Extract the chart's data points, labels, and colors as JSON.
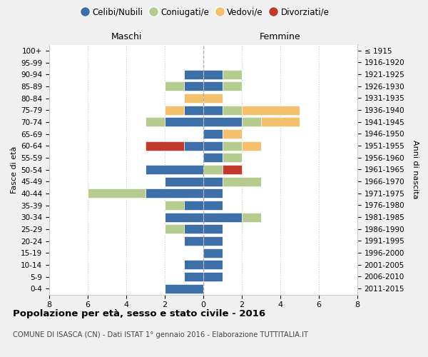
{
  "age_groups": [
    "0-4",
    "5-9",
    "10-14",
    "15-19",
    "20-24",
    "25-29",
    "30-34",
    "35-39",
    "40-44",
    "45-49",
    "50-54",
    "55-59",
    "60-64",
    "65-69",
    "70-74",
    "75-79",
    "80-84",
    "85-89",
    "90-94",
    "95-99",
    "100+"
  ],
  "birth_years": [
    "2011-2015",
    "2006-2010",
    "2001-2005",
    "1996-2000",
    "1991-1995",
    "1986-1990",
    "1981-1985",
    "1976-1980",
    "1971-1975",
    "1966-1970",
    "1961-1965",
    "1956-1960",
    "1951-1955",
    "1946-1950",
    "1941-1945",
    "1936-1940",
    "1931-1935",
    "1926-1930",
    "1921-1925",
    "1916-1920",
    "≤ 1915"
  ],
  "colors": {
    "celibe": "#3d6fa8",
    "coniugato": "#b5cc8e",
    "vedovo": "#f5c06b",
    "divorziato": "#c0392b"
  },
  "maschi": {
    "celibe": [
      2,
      1,
      1,
      0,
      1,
      1,
      2,
      1,
      3,
      2,
      3,
      0,
      1,
      0,
      2,
      1,
      0,
      1,
      1,
      0,
      0
    ],
    "coniugato": [
      0,
      0,
      0,
      0,
      0,
      1,
      0,
      1,
      3,
      0,
      0,
      0,
      0,
      0,
      1,
      0,
      0,
      1,
      0,
      0,
      0
    ],
    "vedovo": [
      0,
      0,
      0,
      0,
      0,
      0,
      0,
      0,
      0,
      0,
      0,
      0,
      0,
      0,
      0,
      1,
      1,
      0,
      0,
      0,
      0
    ],
    "divorziato": [
      0,
      0,
      0,
      0,
      0,
      0,
      0,
      0,
      0,
      0,
      0,
      0,
      2,
      0,
      0,
      0,
      0,
      0,
      0,
      0,
      0
    ]
  },
  "femmine": {
    "celibe": [
      0,
      1,
      1,
      1,
      1,
      1,
      2,
      1,
      1,
      1,
      0,
      1,
      1,
      1,
      2,
      1,
      0,
      1,
      1,
      0,
      0
    ],
    "coniugato": [
      0,
      0,
      0,
      0,
      0,
      0,
      1,
      0,
      0,
      2,
      1,
      1,
      1,
      0,
      1,
      1,
      0,
      1,
      1,
      0,
      0
    ],
    "vedovo": [
      0,
      0,
      0,
      0,
      0,
      0,
      0,
      0,
      0,
      0,
      0,
      0,
      1,
      1,
      2,
      3,
      1,
      0,
      0,
      0,
      0
    ],
    "divorziato": [
      0,
      0,
      0,
      0,
      0,
      0,
      0,
      0,
      0,
      0,
      1,
      0,
      0,
      0,
      0,
      0,
      0,
      0,
      0,
      0,
      0
    ]
  },
  "xlim": 8,
  "title": "Popolazione per età, sesso e stato civile - 2016",
  "subtitle": "COMUNE DI ISASCA (CN) - Dati ISTAT 1° gennaio 2016 - Elaborazione TUTTITALIA.IT",
  "ylabel_left": "Fasce di età",
  "ylabel_right": "Anni di nascita",
  "xlabel_maschi": "Maschi",
  "xlabel_femmine": "Femmine",
  "legend_labels": [
    "Celibi/Nubili",
    "Coniugati/e",
    "Vedovi/e",
    "Divorziati/e"
  ],
  "bg_color": "#f0f0f0",
  "plot_bg_color": "#ffffff"
}
